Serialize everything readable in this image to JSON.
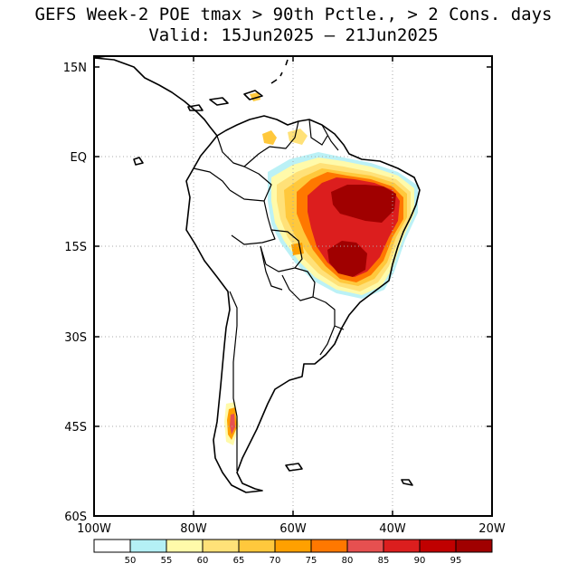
{
  "title": {
    "line1": "GEFS Week-2 POE tmax > 90th Pctle., > 2 Cons. days",
    "line2": "Valid: 15Jun2025 – 21Jun2025"
  },
  "map": {
    "x_ticks": [
      "100W",
      "80W",
      "60W",
      "40W",
      "20W"
    ],
    "y_ticks": [
      "15N",
      "EQ",
      "15S",
      "30S",
      "45S",
      "60S"
    ],
    "lon_range": [
      -100,
      -20
    ],
    "lat_range": [
      -60,
      15
    ],
    "grid_dotted": true
  },
  "legend": {
    "labels": [
      "50",
      "55",
      "60",
      "65",
      "70",
      "75",
      "80",
      "85",
      "90",
      "95"
    ],
    "colors": [
      "#ffffff",
      "#b4f0f5",
      "#fffaaa",
      "#ffe178",
      "#ffc83c",
      "#ffa000",
      "#ff7800",
      "#e65050",
      "#dc1e1e",
      "#c00000",
      "#a00000"
    ]
  }
}
